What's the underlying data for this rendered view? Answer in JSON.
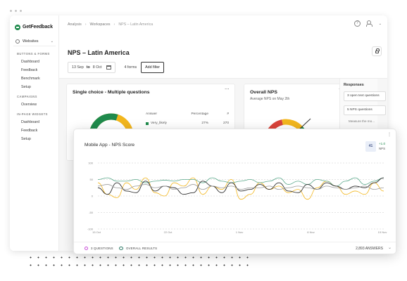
{
  "app": {
    "logo_text": "GetFeedback"
  },
  "sidebar": {
    "workspace": "Websites",
    "sections": [
      {
        "title": "BUTTONS & FORMS",
        "items": [
          "Dashboard",
          "Feedback",
          "Benchmark",
          "Setup"
        ]
      },
      {
        "title": "CAMPAIGNS",
        "items": [
          "Overview"
        ]
      },
      {
        "title": "IN-PAGE WIDGETS",
        "items": [
          "Dashboard",
          "Feedback",
          "Setup"
        ]
      }
    ]
  },
  "breadcrumb": [
    "Analysis",
    "Workspaces",
    "NPS – Latin America"
  ],
  "page": {
    "title": "NPS – Latin America",
    "date_from": "13 Sep",
    "date_to_word": "to",
    "date_to": "8 Oct",
    "forms_count": "4 forms",
    "add_filter": "Add filter"
  },
  "single_choice_card": {
    "title": "Single choice - Multiple questions",
    "headers": [
      "Answer",
      "Percentage",
      "#"
    ],
    "rows": [
      {
        "answer": "Very_likely",
        "percentage": "27%",
        "count": "270",
        "color": "#1f8a4c"
      }
    ],
    "donut": {
      "segments": [
        {
          "label": "green",
          "value": 55,
          "color": "#1f8a4c"
        },
        {
          "label": "yellow",
          "value": 45,
          "color": "#f2b61d"
        }
      ]
    }
  },
  "nps_card": {
    "title": "Overall NPS",
    "subtitle": "Average NPS on May 2th"
  },
  "responses": {
    "title": "Responses",
    "items": [
      "3 open text questions",
      "5 NPS questions"
    ],
    "more": "Measure the mo..."
  },
  "chart_card": {
    "title": "Mobile App - NPS Score",
    "stat_value": "41",
    "stat_delta": "+1.0",
    "stat_label": "NPS",
    "legend_questions": "3 QUESTIONS",
    "legend_overall": "OVERALL RESULTS",
    "answers": "2,893 ANSWERS"
  },
  "chart_data": {
    "type": "line",
    "ylim": [
      -100,
      100
    ],
    "y_ticks": [
      100,
      50,
      0,
      -50,
      -100
    ],
    "x_ticks": [
      "15 Oct",
      "22 Oct",
      "1 Nov",
      "8 Nov",
      "15 Nov"
    ],
    "series": [
      {
        "color": "#f2b61d",
        "values": [
          40,
          5,
          -5,
          40,
          20,
          55,
          10,
          0,
          40,
          30,
          55,
          5,
          30,
          20,
          50,
          -10,
          5,
          40,
          20,
          30,
          10,
          20,
          -10,
          25,
          45,
          30,
          5,
          15,
          5,
          40,
          15
        ]
      },
      {
        "color": "#5aa88a",
        "values": [
          50,
          55,
          45,
          45,
          50,
          40,
          45,
          48,
          45,
          50,
          50,
          40,
          55,
          45,
          40,
          45,
          50,
          40,
          45,
          55,
          35,
          45,
          35,
          50,
          45,
          30,
          45,
          55,
          35,
          45,
          55
        ]
      },
      {
        "color": "#2e2e2e",
        "values": [
          25,
          5,
          40,
          15,
          10,
          45,
          15,
          30,
          25,
          5,
          10,
          45,
          30,
          10,
          40,
          15,
          20,
          35,
          20,
          40,
          15,
          10,
          35,
          20,
          40,
          30,
          20,
          30,
          25,
          40,
          55
        ]
      },
      {
        "color": "#9a9a9a",
        "values": [
          30,
          35,
          25,
          20,
          30,
          35,
          25,
          30,
          20,
          25,
          35,
          20,
          30,
          25,
          30,
          20,
          25,
          25,
          30,
          20,
          25,
          30,
          25,
          20,
          30,
          25,
          20,
          25,
          30,
          20,
          25
        ]
      }
    ]
  }
}
